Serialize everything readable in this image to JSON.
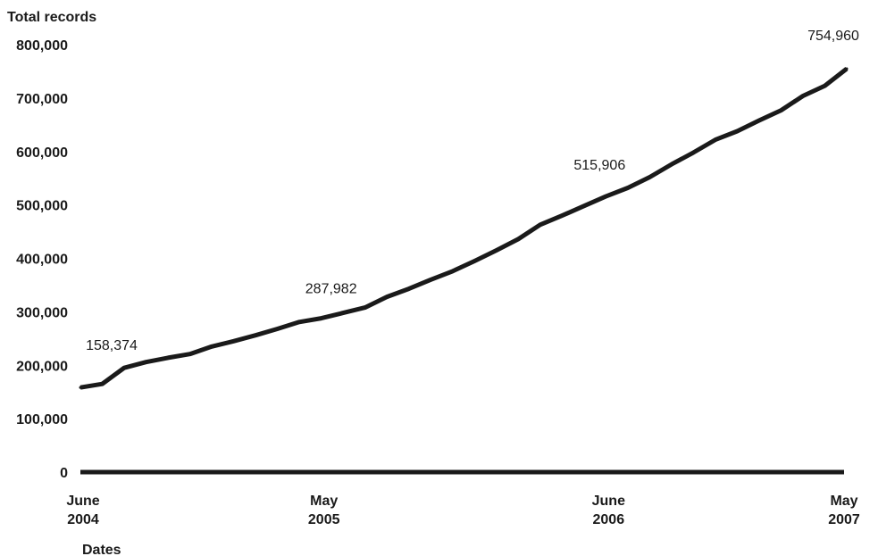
{
  "chart_data": {
    "type": "line",
    "title": "",
    "ylabel": "Total records",
    "xlabel": "Dates",
    "ylim": [
      0,
      800000
    ],
    "yticks": [
      {
        "value": 0,
        "label": "0"
      },
      {
        "value": 100000,
        "label": "100,000"
      },
      {
        "value": 200000,
        "label": "200,000"
      },
      {
        "value": 300000,
        "label": "300,000"
      },
      {
        "value": 400000,
        "label": "400,000"
      },
      {
        "value": 500000,
        "label": "500,000"
      },
      {
        "value": 600000,
        "label": "600,000"
      },
      {
        "value": 700000,
        "label": "700,000"
      },
      {
        "value": 800000,
        "label": "800,000"
      }
    ],
    "xticks": [
      {
        "x": "2004-06",
        "line1": "June",
        "line2": "2004"
      },
      {
        "x": "2005-05",
        "line1": "May",
        "line2": "2005"
      },
      {
        "x": "2006-06",
        "line1": "June",
        "line2": "2006"
      },
      {
        "x": "2007-05",
        "line1": "May",
        "line2": "2007"
      }
    ],
    "series": [
      {
        "color": "#1a1a1a",
        "points": [
          {
            "x": "2004-06",
            "y": 158374
          },
          {
            "x": "2004-07",
            "y": 165000
          },
          {
            "x": "2004-08",
            "y": 195000
          },
          {
            "x": "2004-09",
            "y": 206000
          },
          {
            "x": "2004-10",
            "y": 214000
          },
          {
            "x": "2004-11",
            "y": 221000
          },
          {
            "x": "2004-12",
            "y": 235000
          },
          {
            "x": "2005-01",
            "y": 245000
          },
          {
            "x": "2005-02",
            "y": 256000
          },
          {
            "x": "2005-03",
            "y": 268000
          },
          {
            "x": "2005-04",
            "y": 281000
          },
          {
            "x": "2005-05",
            "y": 287982
          },
          {
            "x": "2005-06",
            "y": 298000
          },
          {
            "x": "2005-07",
            "y": 308000
          },
          {
            "x": "2005-08",
            "y": 328000
          },
          {
            "x": "2005-09",
            "y": 343000
          },
          {
            "x": "2005-10",
            "y": 360000
          },
          {
            "x": "2005-11",
            "y": 376000
          },
          {
            "x": "2005-12",
            "y": 395000
          },
          {
            "x": "2006-01",
            "y": 415000
          },
          {
            "x": "2006-02",
            "y": 436000
          },
          {
            "x": "2006-03",
            "y": 463000
          },
          {
            "x": "2006-04",
            "y": 480000
          },
          {
            "x": "2006-05",
            "y": 498000
          },
          {
            "x": "2006-06",
            "y": 515906
          },
          {
            "x": "2006-07",
            "y": 532000
          },
          {
            "x": "2006-08",
            "y": 552000
          },
          {
            "x": "2006-09",
            "y": 576000
          },
          {
            "x": "2006-10",
            "y": 598000
          },
          {
            "x": "2006-11",
            "y": 622000
          },
          {
            "x": "2006-12",
            "y": 638000
          },
          {
            "x": "2007-01",
            "y": 658000
          },
          {
            "x": "2007-02",
            "y": 677000
          },
          {
            "x": "2007-03",
            "y": 704000
          },
          {
            "x": "2007-04",
            "y": 723000
          },
          {
            "x": "2007-05",
            "y": 754960
          }
        ]
      }
    ],
    "annotations": [
      {
        "x": "2004-06",
        "y": 158374,
        "label": "158,374"
      },
      {
        "x": "2005-05",
        "y": 287982,
        "label": "287,982"
      },
      {
        "x": "2006-06",
        "y": 515906,
        "label": "515,906"
      },
      {
        "x": "2007-05",
        "y": 754960,
        "label": "754,960"
      }
    ],
    "grid": false,
    "legend": "none"
  }
}
